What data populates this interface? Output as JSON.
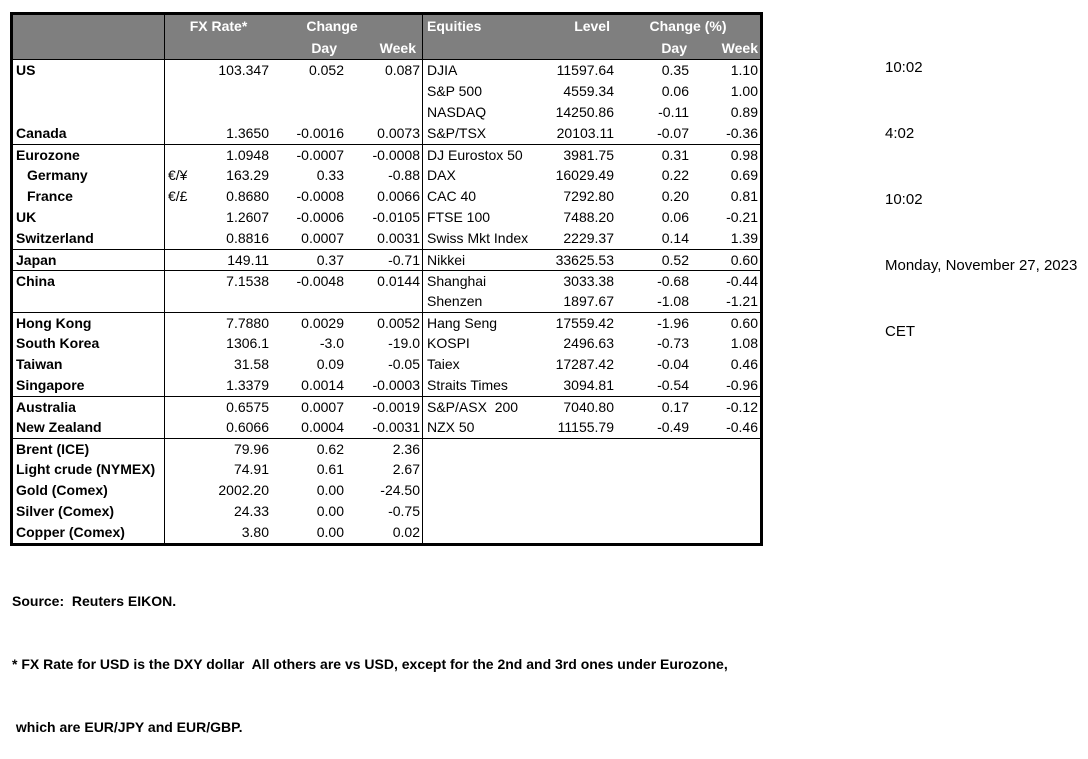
{
  "table": {
    "fx_header": {
      "rate": "FX Rate*",
      "change": "Change",
      "day": "Day",
      "week": "Week"
    },
    "eq_header": {
      "title": "Equities",
      "level": "Level",
      "change": "Change (%)",
      "day": "Day",
      "week": "Week"
    },
    "rows": [
      {
        "name": "US",
        "pair": "",
        "rate": "103.347",
        "day": "0.052",
        "week": "0.087",
        "eq": "DJIA",
        "level": "11597.64",
        "eq_day": "0.35",
        "eq_week": "1.10"
      },
      {
        "name": "",
        "pair": "",
        "rate": "",
        "day": "",
        "week": "",
        "eq": "S&P 500",
        "level": "4559.34",
        "eq_day": "0.06",
        "eq_week": "1.00"
      },
      {
        "name": "",
        "pair": "",
        "rate": "",
        "day": "",
        "week": "",
        "eq": "NASDAQ",
        "level": "14250.86",
        "eq_day": "-0.11",
        "eq_week": "0.89"
      },
      {
        "name": "Canada",
        "pair": "",
        "rate": "1.3650",
        "day": "-0.0016",
        "week": "0.0073",
        "eq": "S&P/TSX",
        "level": "20103.11",
        "eq_day": "-0.07",
        "eq_week": "-0.36"
      },
      {
        "name": "Eurozone",
        "pair": "",
        "rate": "1.0948",
        "day": "-0.0007",
        "week": "-0.0008",
        "eq": "DJ Eurostox 50",
        "level": "3981.75",
        "eq_day": "0.31",
        "eq_week": "0.98",
        "sep": true
      },
      {
        "name": "Germany",
        "pair": "€/¥",
        "rate": "163.29",
        "day": "0.33",
        "week": "-0.88",
        "eq": "DAX",
        "level": "16029.49",
        "eq_day": "0.22",
        "eq_week": "0.69",
        "indent": true
      },
      {
        "name": "France",
        "pair": "€/£",
        "rate": "0.8680",
        "day": "-0.0008",
        "week": "0.0066",
        "eq": "CAC 40",
        "level": "7292.80",
        "eq_day": "0.20",
        "eq_week": "0.81",
        "indent": true
      },
      {
        "name": "UK",
        "pair": "",
        "rate": "1.2607",
        "day": "-0.0006",
        "week": "-0.0105",
        "eq": "FTSE 100",
        "level": "7488.20",
        "eq_day": "0.06",
        "eq_week": "-0.21"
      },
      {
        "name": "Switzerland",
        "pair": "",
        "rate": "0.8816",
        "day": "0.0007",
        "week": "0.0031",
        "eq": "Swiss Mkt Index",
        "level": "2229.37",
        "eq_day": "0.14",
        "eq_week": "1.39"
      },
      {
        "name": "Japan",
        "pair": "",
        "rate": "149.11",
        "day": "0.37",
        "week": "-0.71",
        "eq": "Nikkei",
        "level": "33625.53",
        "eq_day": "0.52",
        "eq_week": "0.60",
        "sep": true
      },
      {
        "name": "China",
        "pair": "",
        "rate": "7.1538",
        "day": "-0.0048",
        "week": "0.0144",
        "eq": "Shanghai",
        "level": "3033.38",
        "eq_day": "-0.68",
        "eq_week": "-0.44",
        "sep": true
      },
      {
        "name": "",
        "pair": "",
        "rate": "",
        "day": "",
        "week": "",
        "eq": "Shenzen",
        "level": "1897.67",
        "eq_day": "-1.08",
        "eq_week": "-1.21"
      },
      {
        "name": "Hong Kong",
        "pair": "",
        "rate": "7.7880",
        "day": "0.0029",
        "week": "0.0052",
        "eq": "Hang Seng",
        "level": "17559.42",
        "eq_day": "-1.96",
        "eq_week": "0.60",
        "sep": true
      },
      {
        "name": "South Korea",
        "pair": "",
        "rate": "1306.1",
        "day": "-3.0",
        "week": "-19.0",
        "eq": "KOSPI",
        "level": "2496.63",
        "eq_day": "-0.73",
        "eq_week": "1.08"
      },
      {
        "name": "Taiwan",
        "pair": "",
        "rate": "31.58",
        "day": "0.09",
        "week": "-0.05",
        "eq": "Taiex",
        "level": "17287.42",
        "eq_day": "-0.04",
        "eq_week": "0.46"
      },
      {
        "name": "Singapore",
        "pair": "",
        "rate": "1.3379",
        "day": "0.0014",
        "week": "-0.0003",
        "eq": "Straits Times",
        "level": "3094.81",
        "eq_day": "-0.54",
        "eq_week": "-0.96"
      },
      {
        "name": "Australia",
        "pair": "",
        "rate": "0.6575",
        "day": "0.0007",
        "week": "-0.0019",
        "eq": "S&P/ASX  200",
        "level": "7040.80",
        "eq_day": "0.17",
        "eq_week": "-0.12",
        "sep": true
      },
      {
        "name": "New Zealand",
        "pair": "",
        "rate": "0.6066",
        "day": "0.0004",
        "week": "-0.0031",
        "eq": "NZX 50",
        "level": "11155.79",
        "eq_day": "-0.49",
        "eq_week": "-0.46"
      },
      {
        "name": "Brent (ICE)",
        "pair": "",
        "rate": "79.96",
        "day": "0.62",
        "week": "2.36",
        "eq": "",
        "level": "",
        "eq_day": "",
        "eq_week": "",
        "sep": true
      },
      {
        "name": "Light crude (NYMEX)",
        "pair": "",
        "rate": "74.91",
        "day": "0.61",
        "week": "2.67",
        "eq": "",
        "level": "",
        "eq_day": "",
        "eq_week": ""
      },
      {
        "name": "Gold (Comex)",
        "pair": "",
        "rate": "2002.20",
        "day": "0.00",
        "week": "-24.50",
        "eq": "",
        "level": "",
        "eq_day": "",
        "eq_week": ""
      },
      {
        "name": "Silver (Comex)",
        "pair": "",
        "rate": "24.33",
        "day": "0.00",
        "week": "-0.75",
        "eq": "",
        "level": "",
        "eq_day": "",
        "eq_week": ""
      },
      {
        "name": "Copper (Comex)",
        "pair": "",
        "rate": "3.80",
        "day": "0.00",
        "week": "0.02",
        "eq": "",
        "level": "",
        "eq_day": "",
        "eq_week": ""
      }
    ]
  },
  "timestamps": {
    "time1": "10:02",
    "time2": "4:02",
    "time3": "10:02",
    "date": "Monday, November 27, 2023",
    "timezone": "CET"
  },
  "footnotes": {
    "source": "Source:  Reuters EIKON.",
    "note1": "* FX Rate for USD is the DXY dollar  All others are vs USD, except for the 2nd and 3rd ones under Eurozone,",
    "note2": " which are EUR/JPY and EUR/GBP."
  },
  "colors": {
    "header_bg": "#7f7f7f",
    "header_text": "#ffffff",
    "border": "#000000",
    "body_bg": "#ffffff"
  }
}
